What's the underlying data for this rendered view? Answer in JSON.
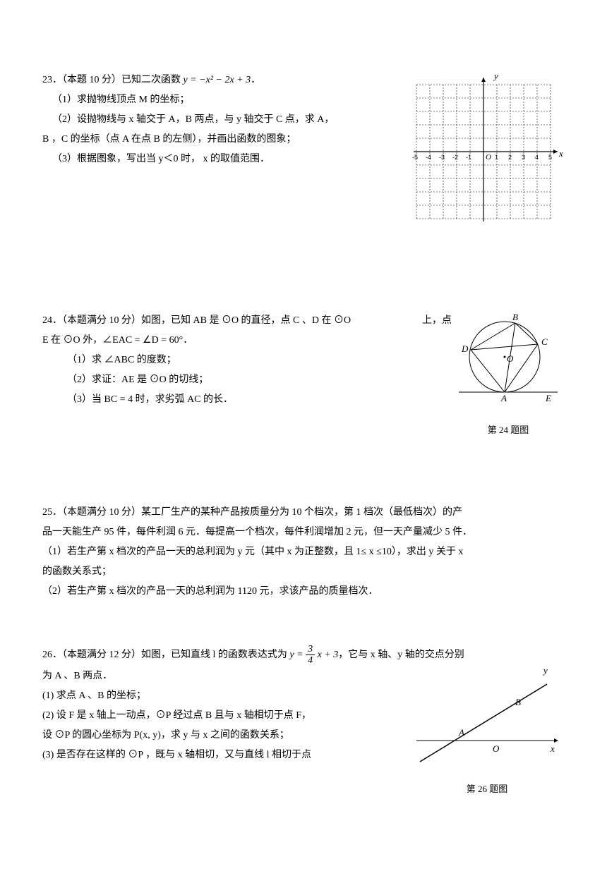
{
  "p23": {
    "header": "23．（本题 10 分）已知二次函数 ",
    "equation": "y = −x² − 2x + 3",
    "period": "．",
    "s1": "（1）求抛物线顶点 M 的坐标；",
    "s2a": "（2）设抛物线与 x 轴交于 A，B 两点，与 y 轴交于 C 点，求 A，",
    "s2b": "B ，C 的坐标（点 A 在点 B 的左侧），并画出函数的图象；",
    "s3": "（3）根据图象，写出当 y＜0 时， x 的取值范围．",
    "grid": {
      "size": 20,
      "rows": 11,
      "cols": 11,
      "xlabels": [
        "-5",
        "-4",
        "-3",
        "-2",
        "-1",
        "",
        "1",
        "2",
        "3",
        "4",
        "5"
      ],
      "axis_color": "#000",
      "dash": "2,2"
    }
  },
  "p24": {
    "header_a": "24．（本题满分 10 分）如图，已知 AB 是 ⊙O 的直径，点 C 、D 在 ⊙O",
    "header_b": "上，点",
    "line2": "E 在 ⊙O 外，∠EAC = ∠D = 60°．",
    "s1": "（1）求 ∠ABC 的度数；",
    "s2": "（2）求证：AE 是 ⊙O 的切线；",
    "s3": "（3）当 BC = 4 时，求劣弧 AC 的长．",
    "caption": "第 24 题图",
    "fig": {
      "labels": {
        "A": "A",
        "B": "B",
        "C": "C",
        "D": "D",
        "E": "E",
        "O": "O"
      }
    }
  },
  "p25": {
    "l1": "25．（本题满分 10 分）某工厂生产的某种产品按质量分为 10 个档次，第 1 档次（最低档次）的产",
    "l2": "品一天能生产 95 件，每件利润 6 元．每提高一个档次，每件利润增加 2 元，但一天产量减少 5 件．",
    "l3": "（1）若生产第 x 档次的产品一天的总利润为 y 元（其中 x 为正整数，且 1≤ x ≤10），求出 y 关于 x",
    "l4": "的函数关系式；",
    "l5": "（2）若生产第 x 档次的产品一天的总利润为 1120 元，求该产品的质量档次．"
  },
  "p26": {
    "header": "26．（本题满分 12 分）如图，已知直线 l 的函数表达式为 ",
    "eq_left": "y = ",
    "frac_num": "3",
    "frac_den": "4",
    "eq_right": " x + 3",
    "header_tail": "，它与 x 轴、y 轴的交点分别",
    "line2": "为 A 、B 两点．",
    "s1": "(1) 求点 A 、B 的坐标；",
    "s2a": "(2) 设 F 是 x 轴上一动点，⊙P 经过点 B 且与 x 轴相切于点 F，",
    "s2b": "设 ⊙P 的圆心坐标为 P(x, y)，求 y 与 x 之间的函数关系；",
    "s3": "(3) 是否存在这样的 ⊙P ，既与 x 轴相切，又与直线 l 相切于点",
    "caption": "第 26 题图",
    "fig": {
      "labels": {
        "A": "A",
        "B": "B",
        "O": "O",
        "x": "x",
        "y": "y"
      }
    }
  }
}
